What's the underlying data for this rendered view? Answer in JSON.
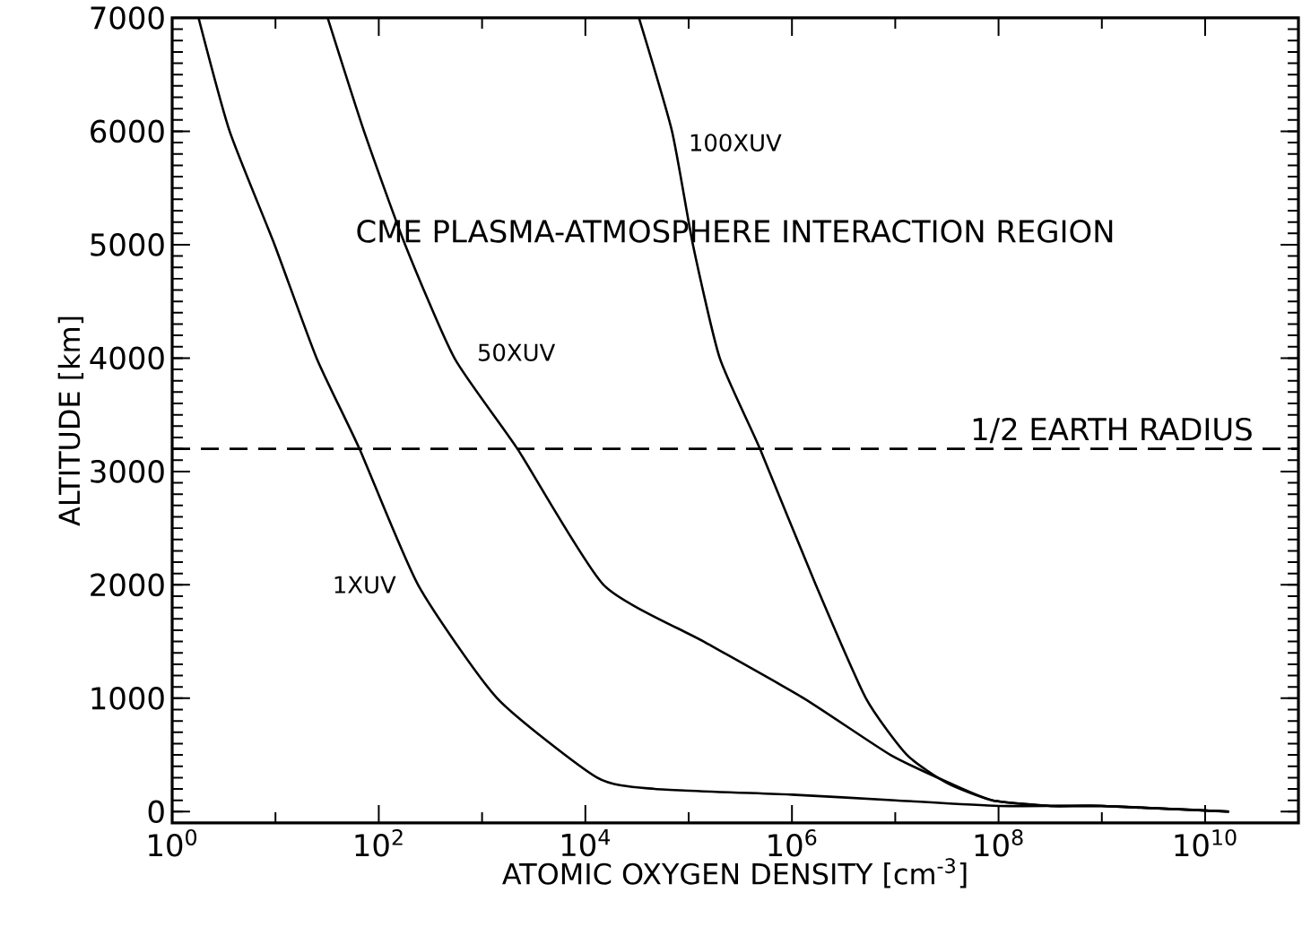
{
  "chart_data": {
    "type": "line",
    "xlabel": "ATOMIC OXYGEN DENSITY [cm$^{-3}$]",
    "ylabel": "ALTITUDE [km]",
    "log": "x",
    "xlim": [
      1,
      80000000000
    ],
    "ylim": [
      -100,
      7000
    ],
    "xticks": [
      {
        "value": 1,
        "label": "10$^{0}$"
      },
      {
        "value": 100,
        "label": "10$^{2}$"
      },
      {
        "value": 10000,
        "label": "10$^{4}$"
      },
      {
        "value": 1000000,
        "label": "10$^{6}$"
      },
      {
        "value": 100000000,
        "label": "10$^{8}$"
      },
      {
        "value": 10000000000,
        "label": "10$^{10}$"
      }
    ],
    "yticks": [
      0,
      1000,
      2000,
      3000,
      4000,
      5000,
      6000,
      7000
    ],
    "marker": "none",
    "line_style": "solid",
    "grid": false,
    "series": [
      {
        "name": "1XUV",
        "color": "#000000",
        "x": [
          1.8,
          3.6,
          9.8,
          25,
          65,
          240,
          1400,
          13000,
          47000,
          1000000,
          10000000,
          100000000,
          1000000000,
          17000000000
        ],
        "values": [
          7000,
          6000,
          5000,
          4000,
          3200,
          2000,
          1000,
          300,
          200,
          150,
          100,
          50,
          50,
          0
        ]
      },
      {
        "name": "50XUV",
        "color": "#000000",
        "x": [
          32,
          72,
          180,
          540,
          2200,
          15000,
          140000,
          1300000,
          9000000,
          34000000,
          87000000,
          320000000,
          1000000000,
          17000000000
        ],
        "values": [
          7000,
          6000,
          5000,
          4000,
          3200,
          2000,
          1500,
          1000,
          500,
          250,
          100,
          50,
          50,
          0
        ]
      },
      {
        "name": "100XUV",
        "color": "#000000",
        "x": [
          33000,
          69000,
          110000,
          200000,
          490000,
          1700000,
          5200000,
          13000000,
          32000000,
          87000000,
          320000000,
          1000000000,
          17000000000
        ],
        "values": [
          7000,
          6000,
          5000,
          4000,
          3200,
          2000,
          1000,
          500,
          250,
          100,
          50,
          50,
          0
        ]
      }
    ],
    "ref_lines": [
      {
        "axis": "y",
        "value": 3200,
        "label": "1/2 EARTH RADIUS",
        "line_style": "dashed",
        "color": "#000000"
      }
    ],
    "annotations": [
      "CME PLASMA-ATMOSPHERE INTERACTION REGION"
    ]
  }
}
